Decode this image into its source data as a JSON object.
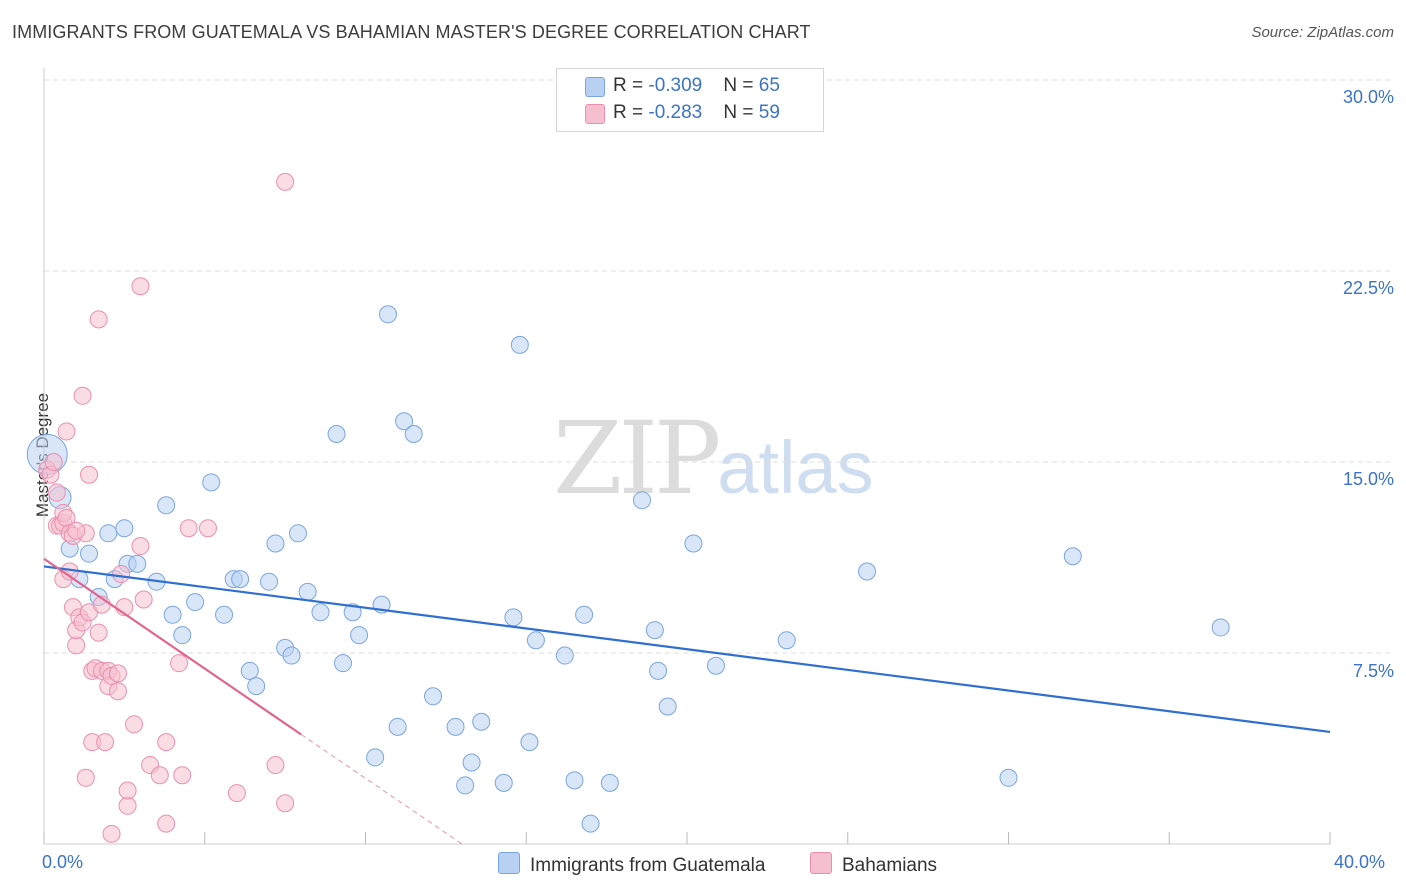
{
  "title": "IMMIGRANTS FROM GUATEMALA VS BAHAMIAN MASTER'S DEGREE CORRELATION CHART",
  "source": "Source: ZipAtlas.com",
  "watermark": {
    "zip": "ZIP",
    "atlas": "atlas"
  },
  "legend": {
    "rows": [
      {
        "r_label": "R = ",
        "r_value": "-0.309",
        "n_label": "N = ",
        "n_value": "65"
      },
      {
        "r_label": "R = ",
        "r_value": "-0.283",
        "n_label": "N = ",
        "n_value": "59"
      }
    ]
  },
  "colors": {
    "blue_fill": "#b8d1f3",
    "blue_stroke": "#7aa6e0",
    "blue_line": "#2f6fd0",
    "pink_fill": "#f6bfd0",
    "pink_stroke": "#eb8fae",
    "pink_line": "#e0658f",
    "axis_text": "#3a73c8",
    "grid": "#dcdcdc"
  },
  "chart_data": {
    "type": "scatter",
    "title": "IMMIGRANTS FROM GUATEMALA VS BAHAMIAN MASTER'S DEGREE CORRELATION CHART",
    "xlabel": "",
    "ylabel": "Master's Degree",
    "xlim": [
      0,
      40
    ],
    "ylim": [
      0,
      30
    ],
    "x_tick_labels": [
      "0.0%",
      "40.0%"
    ],
    "y_ticks": [
      7.5,
      15.0,
      22.5,
      30.0
    ],
    "y_tick_labels": [
      "7.5%",
      "15.0%",
      "22.5%",
      "30.0%"
    ],
    "grid": true,
    "legend_position": "top-center",
    "series": [
      {
        "name": "Immigrants from Guatemala",
        "r": -0.309,
        "n": 65,
        "trend": {
          "x": [
            0,
            40
          ],
          "y": [
            10.9,
            4.4
          ]
        },
        "points": [
          [
            0.1,
            15.3
          ],
          [
            0.5,
            13.6
          ],
          [
            0.8,
            11.6
          ],
          [
            1.1,
            10.4
          ],
          [
            1.4,
            11.4
          ],
          [
            1.7,
            9.7
          ],
          [
            2.0,
            12.2
          ],
          [
            2.2,
            10.4
          ],
          [
            2.5,
            12.4
          ],
          [
            2.6,
            11.0
          ],
          [
            2.9,
            11.0
          ],
          [
            3.5,
            10.3
          ],
          [
            3.8,
            13.3
          ],
          [
            4.0,
            9.0
          ],
          [
            4.3,
            8.2
          ],
          [
            4.7,
            9.5
          ],
          [
            5.2,
            14.2
          ],
          [
            5.6,
            9.0
          ],
          [
            5.9,
            10.4
          ],
          [
            6.1,
            10.4
          ],
          [
            6.4,
            6.8
          ],
          [
            6.6,
            6.2
          ],
          [
            7.0,
            10.3
          ],
          [
            7.2,
            11.8
          ],
          [
            7.5,
            7.7
          ],
          [
            7.7,
            7.4
          ],
          [
            7.9,
            12.2
          ],
          [
            8.2,
            9.9
          ],
          [
            8.6,
            9.1
          ],
          [
            9.1,
            16.1
          ],
          [
            9.3,
            7.1
          ],
          [
            9.6,
            9.1
          ],
          [
            9.8,
            8.2
          ],
          [
            10.3,
            3.4
          ],
          [
            10.5,
            9.4
          ],
          [
            10.7,
            20.8
          ],
          [
            11.0,
            4.6
          ],
          [
            11.2,
            16.6
          ],
          [
            11.5,
            16.1
          ],
          [
            12.1,
            5.8
          ],
          [
            12.8,
            4.6
          ],
          [
            13.1,
            2.3
          ],
          [
            13.3,
            3.2
          ],
          [
            13.6,
            4.8
          ],
          [
            14.3,
            2.4
          ],
          [
            14.6,
            8.9
          ],
          [
            14.8,
            19.6
          ],
          [
            15.1,
            4.0
          ],
          [
            15.3,
            8.0
          ],
          [
            16.2,
            7.4
          ],
          [
            16.8,
            9.0
          ],
          [
            16.5,
            2.5
          ],
          [
            17.0,
            0.8
          ],
          [
            17.6,
            2.4
          ],
          [
            18.6,
            13.5
          ],
          [
            19.0,
            8.4
          ],
          [
            19.1,
            6.8
          ],
          [
            19.4,
            5.4
          ],
          [
            20.2,
            11.8
          ],
          [
            20.9,
            7.0
          ],
          [
            23.1,
            8.0
          ],
          [
            25.6,
            10.7
          ],
          [
            32.0,
            11.3
          ],
          [
            30.0,
            2.6
          ],
          [
            36.6,
            8.5
          ]
        ]
      },
      {
        "name": "Bahamians",
        "r": -0.283,
        "n": 59,
        "trend": {
          "x": [
            0,
            8
          ],
          "y": [
            11.2,
            4.3
          ]
        },
        "trend_dashed": {
          "x": [
            8,
            13
          ],
          "y": [
            4.3,
            0
          ]
        },
        "points": [
          [
            0.1,
            14.7
          ],
          [
            0.2,
            14.5
          ],
          [
            0.3,
            15.0
          ],
          [
            0.4,
            13.8
          ],
          [
            0.4,
            12.5
          ],
          [
            0.5,
            12.5
          ],
          [
            0.6,
            12.6
          ],
          [
            0.6,
            13.0
          ],
          [
            0.6,
            10.4
          ],
          [
            0.7,
            16.2
          ],
          [
            0.7,
            12.8
          ],
          [
            0.8,
            12.2
          ],
          [
            0.8,
            10.7
          ],
          [
            0.9,
            12.1
          ],
          [
            0.9,
            9.3
          ],
          [
            1.0,
            7.8
          ],
          [
            1.0,
            8.4
          ],
          [
            1.1,
            8.9
          ],
          [
            1.2,
            17.6
          ],
          [
            1.2,
            8.7
          ],
          [
            1.3,
            2.6
          ],
          [
            1.3,
            12.2
          ],
          [
            1.4,
            14.5
          ],
          [
            1.4,
            9.1
          ],
          [
            1.5,
            4.0
          ],
          [
            1.5,
            6.8
          ],
          [
            1.6,
            6.9
          ],
          [
            1.7,
            20.6
          ],
          [
            1.7,
            8.3
          ],
          [
            1.8,
            6.8
          ],
          [
            1.8,
            9.4
          ],
          [
            1.9,
            4.0
          ],
          [
            2.0,
            6.8
          ],
          [
            2.0,
            6.2
          ],
          [
            2.1,
            6.6
          ],
          [
            2.1,
            0.4
          ],
          [
            2.3,
            6.0
          ],
          [
            2.3,
            6.7
          ],
          [
            2.4,
            10.6
          ],
          [
            2.5,
            9.3
          ],
          [
            2.6,
            1.5
          ],
          [
            2.6,
            2.1
          ],
          [
            2.8,
            4.7
          ],
          [
            3.0,
            21.9
          ],
          [
            3.0,
            11.7
          ],
          [
            3.1,
            9.6
          ],
          [
            3.3,
            3.1
          ],
          [
            3.6,
            2.7
          ],
          [
            3.8,
            4.0
          ],
          [
            3.8,
            0.8
          ],
          [
            4.2,
            7.1
          ],
          [
            4.3,
            2.7
          ],
          [
            4.5,
            12.4
          ],
          [
            5.1,
            12.4
          ],
          [
            6.0,
            2.0
          ],
          [
            7.2,
            3.1
          ],
          [
            7.5,
            1.6
          ],
          [
            7.5,
            26.0
          ],
          [
            1.0,
            12.3
          ]
        ]
      }
    ]
  }
}
